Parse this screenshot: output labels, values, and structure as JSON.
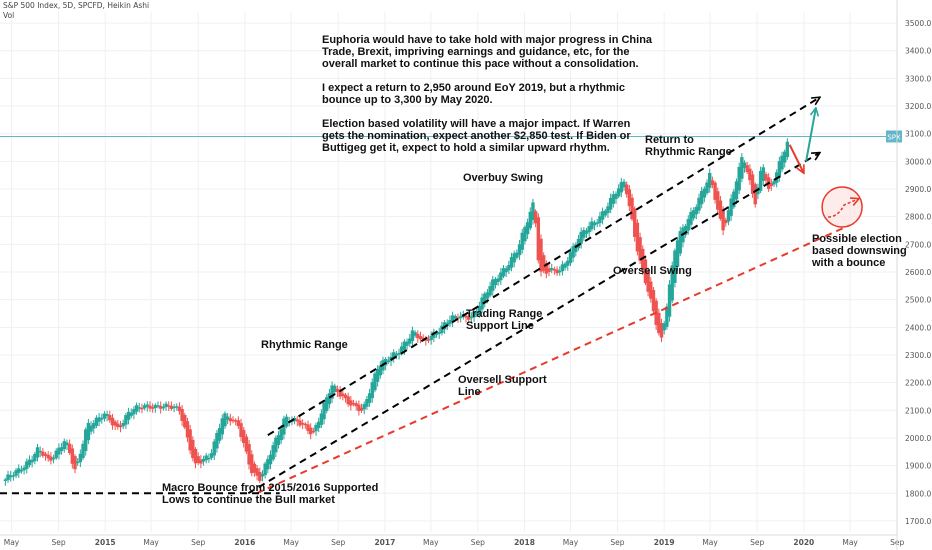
{
  "header": {
    "title": "S&P 500 Index, 5D, SPCFD, Heikin Ashi",
    "volume_label": "Vol"
  },
  "colors": {
    "up_candle": "#26a69a",
    "down_candle": "#ef5350",
    "resistance_line": "#000000",
    "oversell_support_line": "#e8392b",
    "price_line": "#63b5c8",
    "price_tag_bg": "#63b5c8",
    "grid": "#eef1f4"
  },
  "chart_data": {
    "type": "candlestick",
    "title": "S&P 500 Index, 5D, SPCFD, Heikin Ashi",
    "x_ticks": [
      "May",
      "Sep",
      "2015",
      "May",
      "Sep",
      "2016",
      "May",
      "Sep",
      "2017",
      "May",
      "Sep",
      "2018",
      "May",
      "Sep",
      "2019",
      "May",
      "Sep",
      "2020",
      "May",
      "Sep"
    ],
    "y_ticks": [
      1700,
      1800,
      1900,
      2000,
      2100,
      2200,
      2300,
      2400,
      2500,
      2600,
      2700,
      2800,
      2900,
      3000,
      3100,
      3200,
      3300,
      3400,
      3500
    ],
    "ylim": [
      1660,
      3540
    ],
    "last_price_label": "SPX",
    "last_price": 3090,
    "price_path": [
      [
        "2014-04-15",
        1850
      ],
      [
        "2014-05-20",
        1880
      ],
      [
        "2014-07-10",
        1960
      ],
      [
        "2014-08-07",
        1910
      ],
      [
        "2014-09-18",
        2000
      ],
      [
        "2014-10-16",
        1870
      ],
      [
        "2014-11-15",
        2050
      ],
      [
        "2014-12-29",
        2085
      ],
      [
        "2015-02-01",
        2030
      ],
      [
        "2015-03-05",
        2100
      ],
      [
        "2015-05-20",
        2120
      ],
      [
        "2015-07-15",
        2100
      ],
      [
        "2015-08-25",
        1900
      ],
      [
        "2015-10-01",
        1930
      ],
      [
        "2015-11-05",
        2090
      ],
      [
        "2015-12-15",
        2040
      ],
      [
        "2016-01-20",
        1880
      ],
      [
        "2016-02-11",
        1850
      ],
      [
        "2016-04-15",
        2080
      ],
      [
        "2016-06-27",
        2020
      ],
      [
        "2016-08-15",
        2185
      ],
      [
        "2016-11-04",
        2090
      ],
      [
        "2016-12-15",
        2270
      ],
      [
        "2017-02-01",
        2300
      ],
      [
        "2017-03-15",
        2390
      ],
      [
        "2017-04-15",
        2340
      ],
      [
        "2017-06-15",
        2430
      ],
      [
        "2017-08-15",
        2440
      ],
      [
        "2017-10-15",
        2570
      ],
      [
        "2017-12-15",
        2680
      ],
      [
        "2018-01-26",
        2860
      ],
      [
        "2018-02-09",
        2600
      ],
      [
        "2018-04-02",
        2600
      ],
      [
        "2018-05-20",
        2720
      ],
      [
        "2018-07-15",
        2800
      ],
      [
        "2018-09-20",
        2930
      ],
      [
        "2018-10-29",
        2640
      ],
      [
        "2018-12-24",
        2350
      ],
      [
        "2019-01-31",
        2700
      ],
      [
        "2019-03-15",
        2820
      ],
      [
        "2019-04-30",
        2945
      ],
      [
        "2019-06-03",
        2750
      ],
      [
        "2019-07-26",
        3020
      ],
      [
        "2019-08-26",
        2850
      ],
      [
        "2019-09-15",
        3000
      ],
      [
        "2019-10-03",
        2880
      ],
      [
        "2019-11-25",
        3100
      ]
    ],
    "trend_lines": [
      {
        "name": "Rhythmic Range (upper)",
        "color": "black",
        "from": [
          "2016-03-01",
          2010
        ],
        "to": [
          "2020-02-10",
          3230
        ],
        "arrow": true
      },
      {
        "name": "Trading Range Support Line",
        "color": "black",
        "from": [
          "2016-01-10",
          1800
        ],
        "to": [
          "2020-02-10",
          3030
        ],
        "arrow": true
      },
      {
        "name": "Oversell Support Line",
        "color": "red",
        "from": [
          "2016-02-01",
          1800
        ],
        "to": [
          "2020-05-01",
          2770
        ]
      },
      {
        "name": "Macro Bounce base",
        "color": "black",
        "from": [
          "2014-04-01",
          1800
        ],
        "to": [
          "2016-04-01",
          1800
        ]
      }
    ],
    "projection_arrows": [
      {
        "color": "red",
        "from": [
          "2019-11-25",
          3060
        ],
        "to": [
          "2019-12-31",
          2960
        ]
      },
      {
        "color": "teal",
        "from": [
          "2020-01-07",
          3000
        ],
        "to": [
          "2020-02-01",
          3190
        ]
      }
    ],
    "annotations": [
      {
        "text": "Euphoria would have to take hold with major progress in China\nTrade, Brexit, impriving earnings and guidance, etc, for the\noverall market to continue this pace without a consolidation.\n\nI expect a return to 2,950 around EoY 2019, but a rhythmic\nbounce up to 3,300 by May 2020.\n\nElection based volatility will have a major impact. If Warren\ngets the nomination, expect another $2,850 test. If Biden or\nButtigeg get it, expect to hold a similar upward rhythm."
      },
      {
        "text": "Return to\nRhythmic Range"
      },
      {
        "text": "Overbuy Swing"
      },
      {
        "text": "Oversell Swing"
      },
      {
        "text": "Possible election\nbased downswing\nwith a bounce"
      },
      {
        "text": "Trading Range\nSupport Line"
      },
      {
        "text": "Rhythmic Range"
      },
      {
        "text": "Oversell Support\nLine"
      },
      {
        "text": "Macro Bounce from 2015/2016 Supported\nLows to continue the Bull market"
      }
    ]
  }
}
